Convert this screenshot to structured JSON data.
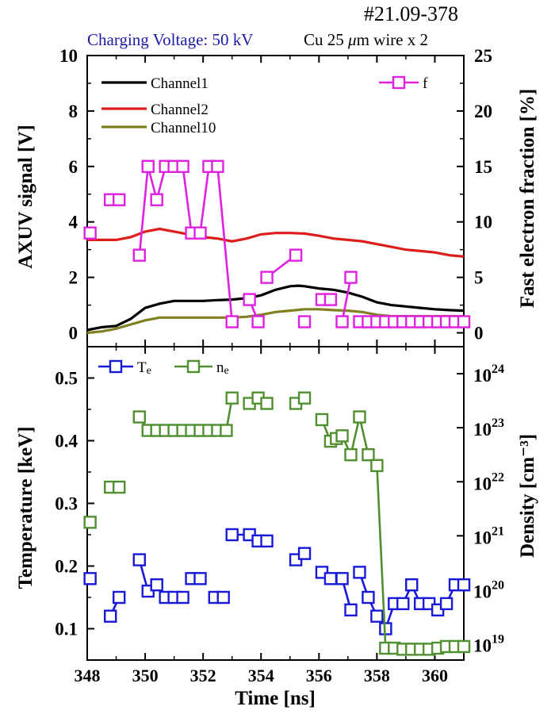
{
  "header": {
    "shot_id": "#21.09-378",
    "charging_voltage": "Charging Voltage: 50 kV",
    "wire_pre": "Cu 25 ",
    "wire_mu": "μ",
    "wire_post": "m wire x 2"
  },
  "colors": {
    "channel1": "#000000",
    "channel2": "#dd1c1c",
    "channel10": "#808020",
    "f": "#e020e0",
    "te": "#1818d8",
    "ne": "#4f8f2f",
    "voltage_text": "#1a1aa8"
  },
  "chart_data": [
    {
      "type": "line",
      "name": "top-panel",
      "ylabel": "AXUV signal [V]",
      "y2label": "Fast electron fraction [%]",
      "xlim": [
        348,
        361
      ],
      "ylim": [
        -0.5,
        10
      ],
      "y2lim": [
        -1.25,
        25
      ],
      "yticks": [
        "0",
        "2",
        "4",
        "6",
        "8",
        "10"
      ],
      "y2ticks": [
        "0",
        "5",
        "10",
        "15",
        "20",
        "25"
      ],
      "series": [
        {
          "name": "Channel1",
          "axis": "left",
          "x": [
            348,
            348.5,
            349,
            349.5,
            350,
            350.5,
            351,
            351.5,
            352,
            352.5,
            353,
            353.5,
            354,
            354.5,
            355,
            355.3,
            355.5,
            356,
            356.5,
            357,
            357.5,
            358,
            358.5,
            359,
            359.5,
            360,
            360.5,
            361
          ],
          "y": [
            0.1,
            0.2,
            0.25,
            0.5,
            0.9,
            1.05,
            1.15,
            1.15,
            1.15,
            1.18,
            1.2,
            1.25,
            1.35,
            1.55,
            1.68,
            1.7,
            1.68,
            1.6,
            1.55,
            1.45,
            1.3,
            1.1,
            1.0,
            0.95,
            0.9,
            0.85,
            0.82,
            0.8
          ]
        },
        {
          "name": "Channel2",
          "axis": "left",
          "x": [
            348,
            348.5,
            349,
            349.5,
            350,
            350.5,
            351,
            351.5,
            352,
            352.5,
            353,
            353.5,
            354,
            354.5,
            355,
            355.5,
            356,
            356.5,
            357,
            357.5,
            358,
            358.5,
            359,
            359.5,
            360,
            360.5,
            361
          ],
          "y": [
            3.35,
            3.35,
            3.35,
            3.45,
            3.65,
            3.75,
            3.65,
            3.55,
            3.45,
            3.4,
            3.3,
            3.4,
            3.55,
            3.6,
            3.6,
            3.58,
            3.5,
            3.4,
            3.35,
            3.3,
            3.2,
            3.1,
            3.0,
            2.95,
            2.9,
            2.8,
            2.75
          ]
        },
        {
          "name": "Channel10",
          "axis": "left",
          "x": [
            348,
            348.5,
            349,
            349.5,
            350,
            350.5,
            351,
            351.5,
            352,
            352.5,
            353,
            353.5,
            354,
            354.5,
            355,
            355.5,
            356,
            356.5,
            357,
            357.5,
            358,
            358.5,
            359,
            359.5,
            360,
            360.5,
            361
          ],
          "y": [
            0.0,
            0.05,
            0.15,
            0.3,
            0.45,
            0.55,
            0.55,
            0.55,
            0.55,
            0.55,
            0.55,
            0.58,
            0.65,
            0.75,
            0.8,
            0.85,
            0.85,
            0.82,
            0.8,
            0.75,
            0.65,
            0.6,
            0.6,
            0.6,
            0.6,
            0.6,
            0.6
          ]
        },
        {
          "name": "f",
          "axis": "right",
          "marker": "square",
          "x": [
            348.1,
            348.8,
            349.1,
            349.8,
            350.1,
            350.4,
            350.7,
            351.0,
            351.3,
            351.6,
            351.9,
            352.2,
            352.5,
            353.0,
            353.6,
            353.9,
            354.2,
            355.2,
            355.5,
            356.1,
            356.4,
            356.8,
            357.1,
            357.4,
            357.7,
            358.0,
            358.3,
            358.6,
            358.9,
            359.2,
            359.5,
            359.8,
            360.1,
            360.4,
            360.7,
            361.0
          ],
          "y": [
            9,
            12,
            12,
            7,
            15,
            12,
            15,
            15,
            15,
            9,
            9,
            15,
            15,
            1,
            3,
            1,
            5,
            7,
            1,
            3,
            3,
            1,
            5,
            1,
            1,
            1,
            1,
            1,
            1,
            1,
            1,
            1,
            1,
            1,
            1,
            1
          ],
          "breaks": [
            1,
            3,
            8,
            10,
            12,
            14,
            16,
            18,
            19,
            21,
            23
          ]
        }
      ],
      "legend": [
        "Channel1",
        "Channel2",
        "Channel10",
        "f"
      ]
    },
    {
      "type": "line",
      "name": "bottom-panel",
      "xlabel": "Time [ns]",
      "ylabel": "Temperature [keV]",
      "y2label": "Density [cm⁻³]",
      "xlim": [
        348,
        361
      ],
      "ylim": [
        0.05,
        0.55
      ],
      "y2scale": "log",
      "y2lim_exp": [
        18.7,
        24.5
      ],
      "xticks": [
        "348",
        "350",
        "352",
        "354",
        "356",
        "358",
        "360"
      ],
      "yticks": [
        "0.1",
        "0.2",
        "0.3",
        "0.4",
        "0.5"
      ],
      "y2ticks": [
        "19",
        "20",
        "21",
        "22",
        "23",
        "24"
      ],
      "y2tick_base": "10",
      "series": [
        {
          "name": "Te",
          "axis": "left",
          "marker": "square",
          "x": [
            348.1,
            348.8,
            349.1,
            349.8,
            350.1,
            350.4,
            350.7,
            351.0,
            351.3,
            351.6,
            351.9,
            352.4,
            352.7,
            353.0,
            353.6,
            353.9,
            354.2,
            355.2,
            355.5,
            356.1,
            356.4,
            356.8,
            357.1,
            357.4,
            357.7,
            358.0,
            358.3,
            358.6,
            358.9,
            359.2,
            359.5,
            359.8,
            360.1,
            360.4,
            360.7,
            361.0
          ],
          "y": [
            0.18,
            0.12,
            0.15,
            0.21,
            0.16,
            0.17,
            0.15,
            0.15,
            0.15,
            0.18,
            0.18,
            0.15,
            0.15,
            0.25,
            0.25,
            0.24,
            0.24,
            0.21,
            0.22,
            0.19,
            0.18,
            0.18,
            0.13,
            0.19,
            0.15,
            0.12,
            0.1,
            0.14,
            0.14,
            0.17,
            0.14,
            0.14,
            0.13,
            0.14,
            0.17,
            0.17
          ],
          "breaks": [
            1,
            3,
            9,
            11,
            13,
            17,
            19,
            21,
            23,
            26
          ]
        },
        {
          "name": "ne",
          "axis": "right",
          "marker": "square",
          "x": [
            348.1,
            348.8,
            349.1,
            349.8,
            350.1,
            350.4,
            350.7,
            351.0,
            351.3,
            351.6,
            351.9,
            352.2,
            352.5,
            352.8,
            353.0,
            353.6,
            353.9,
            354.2,
            355.2,
            355.5,
            356.1,
            356.4,
            356.6,
            356.8,
            357.1,
            357.4,
            357.7,
            358.0,
            358.3,
            358.6,
            358.9,
            359.2,
            359.5,
            359.8,
            360.1,
            360.4,
            360.7,
            361.0
          ],
          "y": [
            21.25,
            21.9,
            21.9,
            23.2,
            22.95,
            22.95,
            22.95,
            22.95,
            22.95,
            22.95,
            22.95,
            22.95,
            22.95,
            22.95,
            23.55,
            23.45,
            23.55,
            23.45,
            23.45,
            23.55,
            23.15,
            22.75,
            22.8,
            22.85,
            22.5,
            23.2,
            22.5,
            22.3,
            18.92,
            18.92,
            18.9,
            18.9,
            18.9,
            18.9,
            18.92,
            18.95,
            18.95,
            18.95
          ],
          "breaks": [
            1,
            3,
            15,
            18,
            20
          ]
        }
      ],
      "legend": [
        "Te",
        "ne"
      ]
    }
  ]
}
